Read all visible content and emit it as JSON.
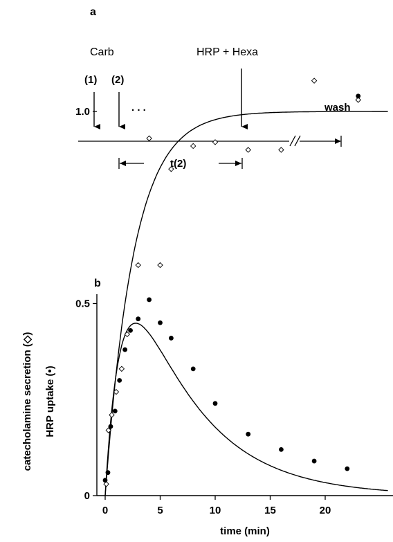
{
  "schematic": {
    "panel_label": "a",
    "carb_label": "Carb",
    "step1_label": "(1)",
    "step2_label": "(2)",
    "ellipsis": ". . .",
    "hrp_hexa_label": "HRP + Hexa",
    "wash_label": "wash",
    "interval_label": "t(2)"
  },
  "chart_data": {
    "panel_label": "b",
    "type": "scatter",
    "xlabel": "time (min)",
    "ylabel_lines": [
      "catecholamine secretion (◇)",
      "HRP uptake (•)"
    ],
    "xlim": [
      0,
      25
    ],
    "ylim": [
      0,
      1.1
    ],
    "xticks": [
      0,
      5,
      10,
      15,
      20
    ],
    "yticks": [
      0,
      0.5,
      1.0
    ],
    "ytick_labels": [
      "0",
      "0.5",
      "1.0"
    ],
    "grid": false,
    "series": [
      {
        "marker": "open-diamond",
        "points": [
          [
            0.1,
            0.03
          ],
          [
            0.3,
            0.17
          ],
          [
            0.6,
            0.21
          ],
          [
            1.0,
            0.27
          ],
          [
            1.5,
            0.33
          ],
          [
            2.0,
            0.42
          ],
          [
            3.0,
            0.6
          ],
          [
            4.0,
            0.93
          ],
          [
            5.0,
            0.6
          ],
          [
            6.0,
            0.85
          ],
          [
            8.0,
            0.91
          ],
          [
            10.0,
            0.92
          ],
          [
            13.0,
            0.9
          ],
          [
            16.0,
            0.9
          ],
          [
            19.0,
            1.08
          ],
          [
            23.0,
            1.03
          ]
        ]
      },
      {
        "marker": "filled-circle",
        "points": [
          [
            0.0,
            0.04
          ],
          [
            0.25,
            0.06
          ],
          [
            0.5,
            0.18
          ],
          [
            0.9,
            0.22
          ],
          [
            1.3,
            0.3
          ],
          [
            1.8,
            0.38
          ],
          [
            2.3,
            0.43
          ],
          [
            3.0,
            0.46
          ],
          [
            4.0,
            0.51
          ],
          [
            5.0,
            0.45
          ],
          [
            6.0,
            0.41
          ],
          [
            8.0,
            0.33
          ],
          [
            10.0,
            0.24
          ],
          [
            13.0,
            0.16
          ],
          [
            16.0,
            0.12
          ],
          [
            19.0,
            0.09
          ],
          [
            22.0,
            0.07
          ],
          [
            23.0,
            1.04
          ]
        ]
      }
    ],
    "fit_curves": [
      {
        "label": "secretion fit",
        "function": "1 - exp(-t/2.6)"
      },
      {
        "label": "uptake fit",
        "function": "0.95*(exp(-t/6) - exp(-t/1.5))"
      }
    ]
  }
}
